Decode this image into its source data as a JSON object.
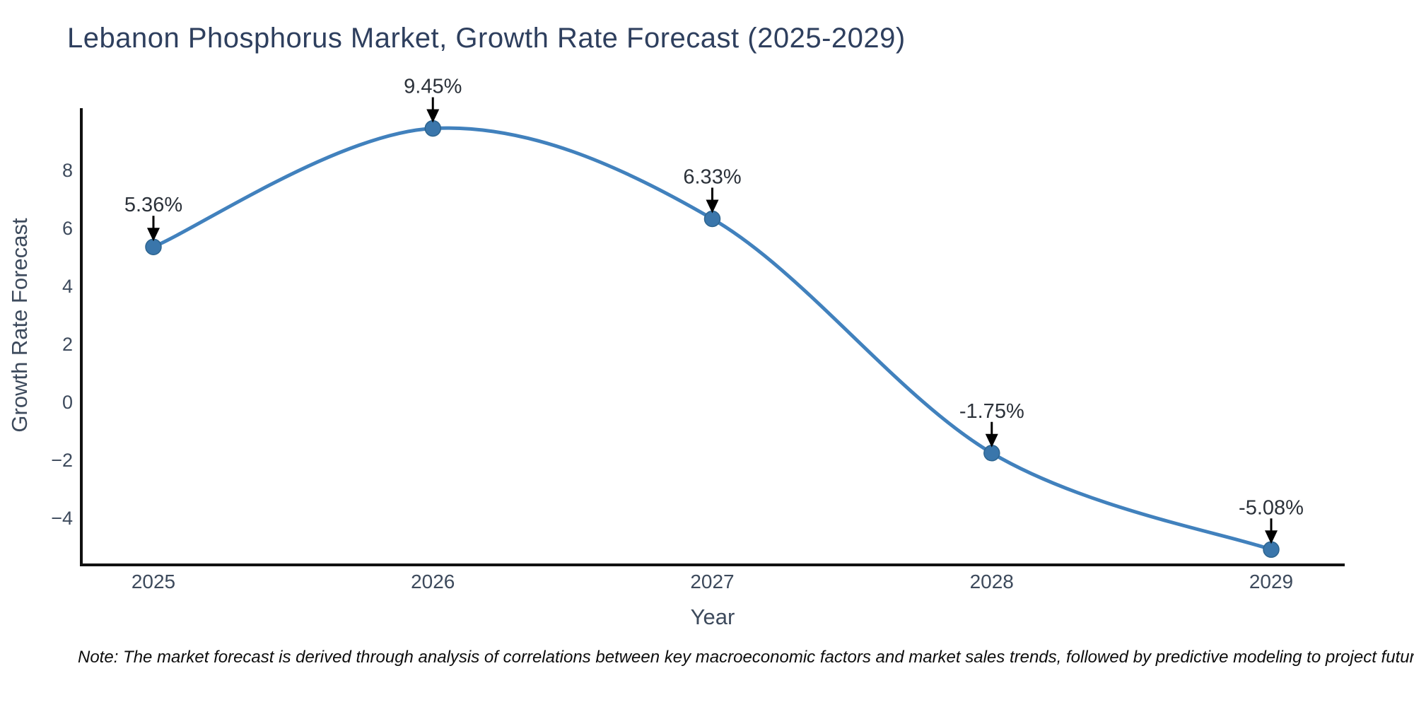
{
  "header": {
    "title": "Lebanon Phosphorus Market, Growth Rate Forecast (2025-2029)"
  },
  "note": {
    "text": "Note: The market forecast is derived through analysis of correlations between key macroeconomic factors and market sales trends, followed by predictive modeling to project future sales"
  },
  "chart_data": {
    "type": "line",
    "title": "Lebanon Phosphorus Market, Growth Rate Forecast (2025-2029)",
    "xlabel": "Year",
    "ylabel": "Growth Rate Forecast",
    "x": [
      2025,
      2026,
      2027,
      2028,
      2029
    ],
    "y": [
      5.36,
      9.45,
      6.33,
      -1.75,
      -5.08
    ],
    "series": [
      {
        "name": "Growth Rate Forecast",
        "values": [
          5.36,
          9.45,
          6.33,
          -1.75,
          -5.08
        ]
      }
    ],
    "point_labels": [
      "5.36%",
      "9.45%",
      "6.33%",
      "-1.75%",
      "-5.08%"
    ],
    "x_tick_labels": [
      "2025",
      "2026",
      "2027",
      "2028",
      "2029"
    ],
    "y_ticks": [
      8,
      6,
      4,
      2,
      0,
      -2,
      -4
    ],
    "y_tick_labels": [
      "8",
      "6",
      "4",
      "2",
      "0",
      "−2",
      "−4"
    ],
    "xlim": [
      2024.74,
      2029.26
    ],
    "ylim": [
      -5.63,
      10.1
    ],
    "line_shape": "spline",
    "markers": true,
    "grid": false,
    "legend": false,
    "annotations_have_arrows": true,
    "colors": {
      "line": "#4181bd",
      "marker_fill": "#3a76ab",
      "marker_edge": "#2d648f",
      "arrow": "#000000",
      "axis_line": "#111111",
      "title_text": "#2e3f5e",
      "tick_text": "#3d4a5c",
      "annotation_text": "#2b3139",
      "note_text": "#0d0d0d",
      "background": "#ffffff"
    }
  }
}
